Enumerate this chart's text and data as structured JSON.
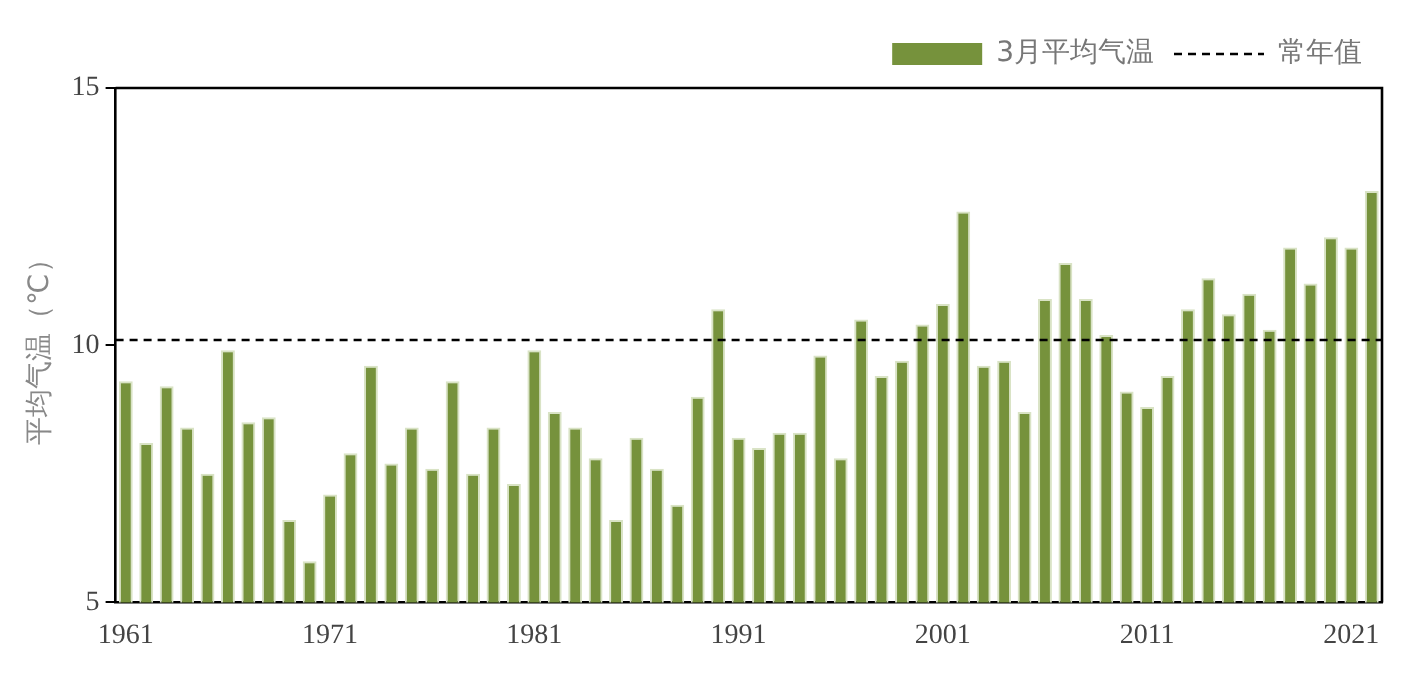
{
  "chart_data": {
    "type": "bar",
    "ylabel": "平均气温（℃）",
    "categories": [
      "1961",
      null,
      null,
      null,
      null,
      null,
      null,
      null,
      null,
      null,
      "1971",
      null,
      null,
      null,
      null,
      null,
      null,
      null,
      null,
      null,
      "1981",
      null,
      null,
      null,
      null,
      null,
      null,
      null,
      null,
      null,
      "1991",
      null,
      null,
      null,
      null,
      null,
      null,
      null,
      null,
      null,
      "2001",
      null,
      null,
      null,
      null,
      null,
      null,
      null,
      null,
      null,
      "2011",
      null,
      null,
      null,
      null,
      null,
      null,
      null,
      null,
      null,
      "2021",
      null
    ],
    "series": [
      {
        "name": "3月平均气温",
        "color": "#76923c",
        "values": [
          9.3,
          8.1,
          9.2,
          8.4,
          7.5,
          9.9,
          8.5,
          8.6,
          6.6,
          5.8,
          7.1,
          7.9,
          9.6,
          7.7,
          8.4,
          7.6,
          9.3,
          7.5,
          8.4,
          7.3,
          9.9,
          8.7,
          8.4,
          7.8,
          6.6,
          8.2,
          7.6,
          6.9,
          9.0,
          10.7,
          8.2,
          8.0,
          8.3,
          8.3,
          9.8,
          7.8,
          10.5,
          9.4,
          9.7,
          10.4,
          10.8,
          12.6,
          9.6,
          9.7,
          8.7,
          10.9,
          11.6,
          10.9,
          10.2,
          9.1,
          8.8,
          9.4,
          10.7,
          11.3,
          10.6,
          11.0,
          10.3,
          11.9,
          11.2,
          12.1,
          11.9,
          13.0
        ]
      }
    ],
    "ylim": [
      5,
      15
    ],
    "yticks": [
      5,
      10,
      15
    ],
    "grid": false,
    "legend": "top right",
    "ref_lines": [
      {
        "axis": "y",
        "value": 10.1,
        "label": "常年值",
        "color": "#000000",
        "line_style": "dashed"
      }
    ]
  }
}
